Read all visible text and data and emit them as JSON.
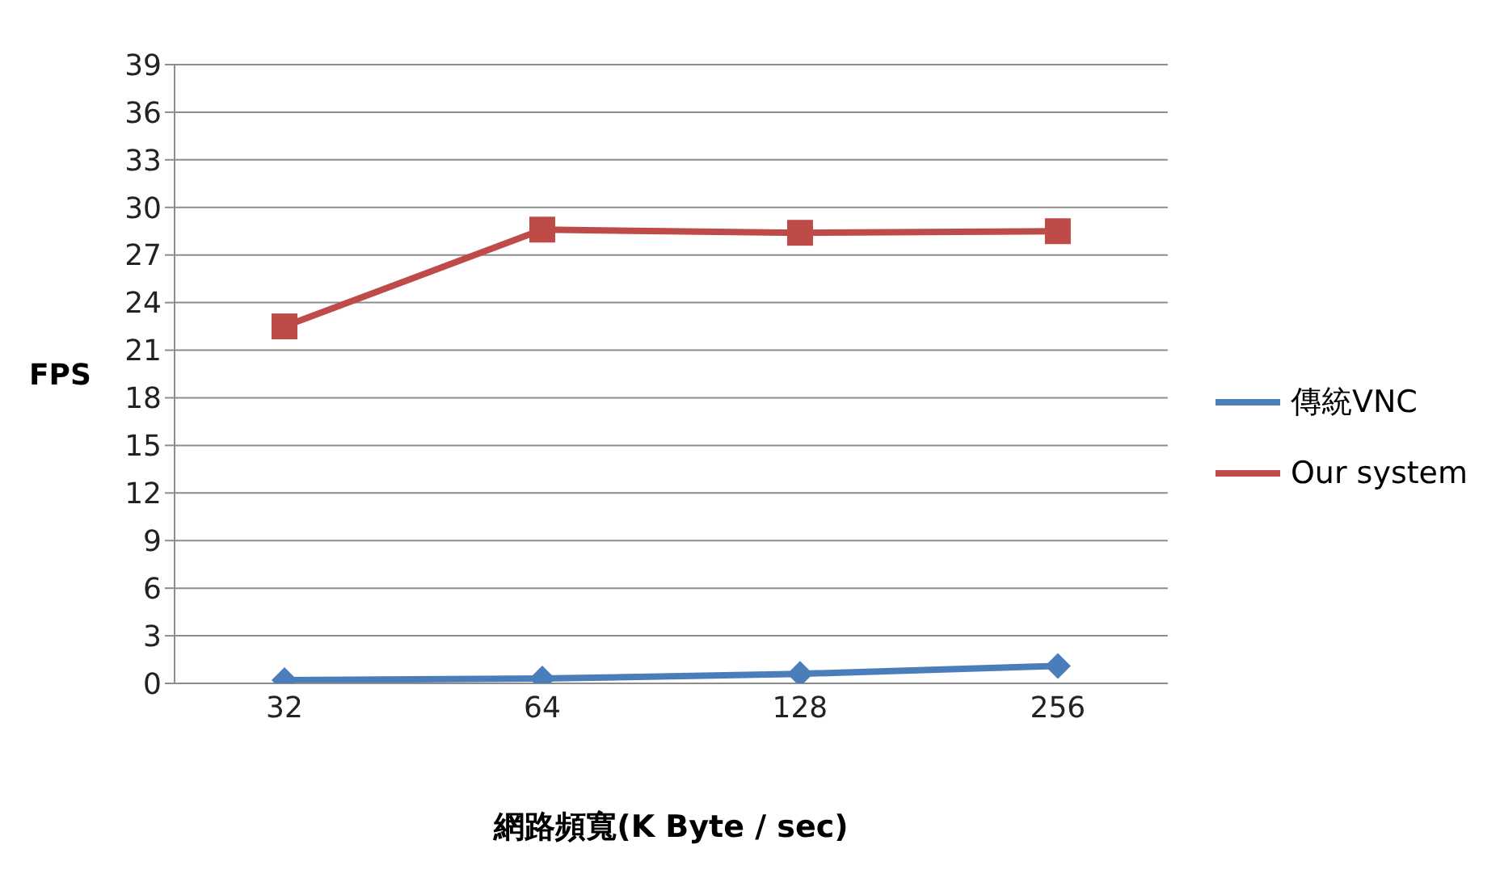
{
  "chart_data": {
    "type": "line",
    "xlabel": "網路頻寬(K Byte / sec)",
    "ylabel": "FPS",
    "categories": [
      "32",
      "64",
      "128",
      "256"
    ],
    "series": [
      {
        "name": "傳統VNC",
        "color": "#4a7ebb",
        "marker": "diamond",
        "values": [
          0.2,
          0.3,
          0.6,
          1.1
        ]
      },
      {
        "name": "Our system",
        "color": "#be4b48",
        "marker": "square",
        "values": [
          22.5,
          28.6,
          28.4,
          28.5
        ]
      }
    ],
    "ylim": [
      0,
      39
    ],
    "yticks": [
      0,
      3,
      6,
      9,
      12,
      15,
      18,
      21,
      24,
      27,
      30,
      33,
      36,
      39
    ],
    "grid": "y",
    "legend": "right"
  }
}
